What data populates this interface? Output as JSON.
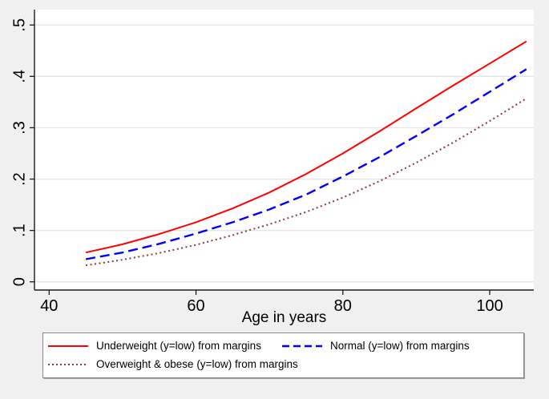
{
  "chart_data": {
    "type": "line",
    "title": "",
    "xlabel": "Age in years",
    "ylabel": "",
    "x": [
      45,
      50,
      55,
      60,
      65,
      70,
      75,
      80,
      85,
      90,
      95,
      100,
      105
    ],
    "series": [
      {
        "name": "Underweight (y=low) from margins",
        "color": "#ff0000",
        "dash": "solid",
        "width": 2,
        "values": [
          0.057,
          0.073,
          0.093,
          0.116,
          0.143,
          0.174,
          0.21,
          0.25,
          0.293,
          0.338,
          0.382,
          0.425,
          0.468
        ]
      },
      {
        "name": "Normal (y=low) from margins",
        "color": "#0000ff",
        "dash": "dash",
        "width": 2.4,
        "values": [
          0.044,
          0.057,
          0.074,
          0.094,
          0.116,
          0.141,
          0.17,
          0.205,
          0.243,
          0.284,
          0.326,
          0.37,
          0.414
        ]
      },
      {
        "name": "Overweight & obese (y=low) from margins",
        "color": "#90353b",
        "dash": "dot",
        "width": 2,
        "values": [
          0.032,
          0.043,
          0.056,
          0.072,
          0.091,
          0.112,
          0.136,
          0.164,
          0.196,
          0.232,
          0.271,
          0.313,
          0.357
        ]
      }
    ],
    "xticks": {
      "values": [
        40,
        60,
        80,
        100
      ],
      "labels": [
        "40",
        "60",
        "80",
        "100"
      ]
    },
    "yticks": {
      "values": [
        0,
        0.1,
        0.2,
        0.3,
        0.4,
        0.5
      ],
      "labels": [
        "0",
        ".1",
        ".2",
        ".3",
        ".4",
        ".5"
      ]
    },
    "xlim": [
      38,
      106
    ],
    "ylim": [
      -0.016,
      0.53
    ],
    "grid": "horizontal",
    "legend_position": "bottom",
    "colors": {
      "canvas_background": "#f0f0f0",
      "plot_background": "#ffffff",
      "gridline": "#e5e5e5",
      "axis": "#1a1a1a",
      "legend_border": "#8a8a8a"
    }
  }
}
